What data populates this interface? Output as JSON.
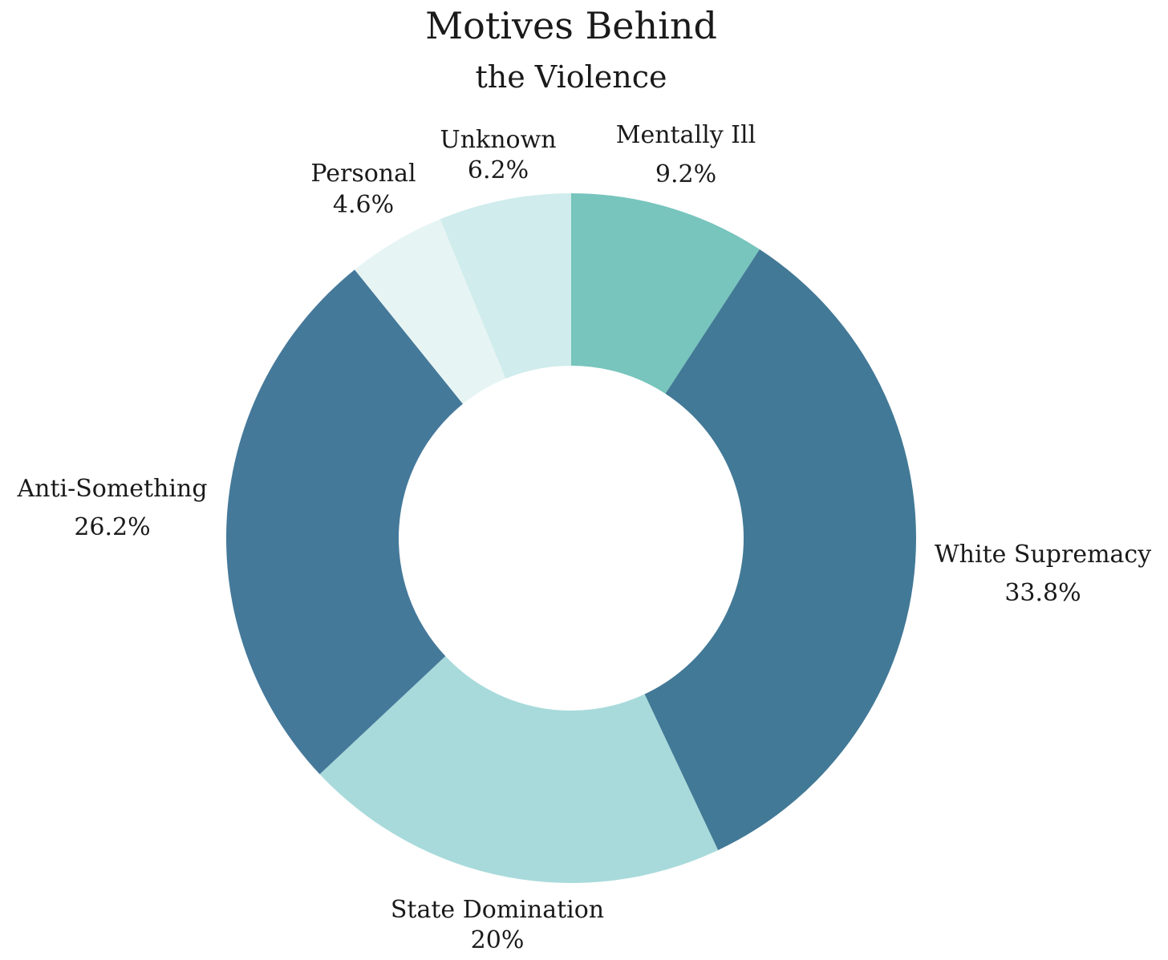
{
  "chart_data": {
    "type": "pie",
    "title": [
      "Motives Behind",
      "the Violence"
    ],
    "donut": true,
    "slices": [
      {
        "label": "Mentally Ill",
        "value": 9.2,
        "value_label": "9.2%",
        "color": "#77c5bd"
      },
      {
        "label": "White Supremacy",
        "value": 33.8,
        "value_label": "33.8%",
        "color": "#427996"
      },
      {
        "label": "State Domination",
        "value": 20,
        "value_label": "20%",
        "color": "#a8dadb"
      },
      {
        "label": "Anti-Something",
        "value": 26.2,
        "value_label": "26.2%",
        "color": "#45799a"
      },
      {
        "label": "Personal",
        "value": 4.6,
        "value_label": "4.6%",
        "color": "#e7f4f4"
      },
      {
        "label": "Unknown",
        "value": 6.2,
        "value_label": "6.2%",
        "color": "#d0ecec"
      }
    ],
    "start": "12 o'clock",
    "direction": "clockwise"
  }
}
